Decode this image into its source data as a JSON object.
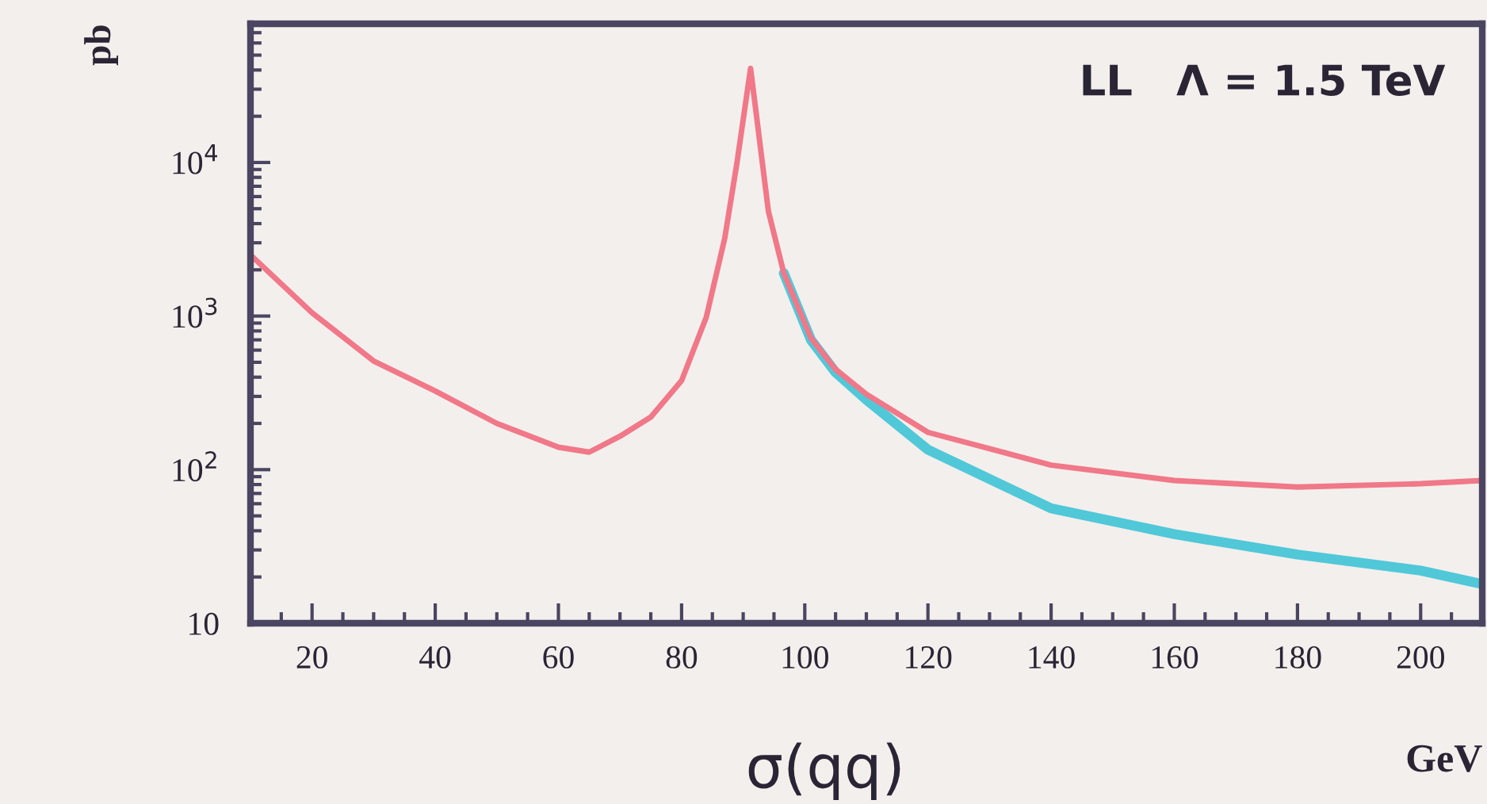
{
  "chart_data": {
    "type": "line",
    "xlabel": "σ(qq)",
    "ylabel": "pb",
    "annotations": [
      "LL   Λ = 1.5 TeV",
      "GeV"
    ],
    "log": "y",
    "grid": false,
    "xlim": [
      10,
      210
    ],
    "xticks": [
      20,
      40,
      60,
      80,
      100,
      120,
      140,
      160,
      180,
      200
    ],
    "ylim": [
      10,
      80000
    ],
    "yticks": [
      10,
      {
        "value": 100,
        "label": "10$^{2}$"
      },
      {
        "value": 1000,
        "label": "10$^{3}$"
      },
      {
        "value": 10000,
        "label": "10$^{4}$"
      }
    ],
    "series": [
      {
        "color": "#50c8d8",
        "x": [
          96.6,
          101,
          105,
          110,
          120,
          140,
          160,
          180,
          200,
          210
        ],
        "values": [
          1900,
          700,
          430,
          285,
          135,
          56,
          38,
          28,
          22,
          18
        ]
      },
      {
        "color": "#f07888",
        "x": [
          10,
          20,
          30,
          40,
          50,
          60,
          65,
          70,
          75,
          80,
          84,
          87,
          89,
          91.2,
          94.1,
          96.6,
          101,
          105,
          110,
          120,
          140,
          160,
          180,
          200,
          210
        ],
        "values": [
          2500,
          1050,
          510,
          325,
          200,
          140,
          130,
          165,
          220,
          380,
          980,
          3200,
          10000,
          41000,
          4800,
          1900,
          720,
          450,
          310,
          175,
          107,
          85,
          77,
          81,
          85
        ]
      }
    ]
  }
}
